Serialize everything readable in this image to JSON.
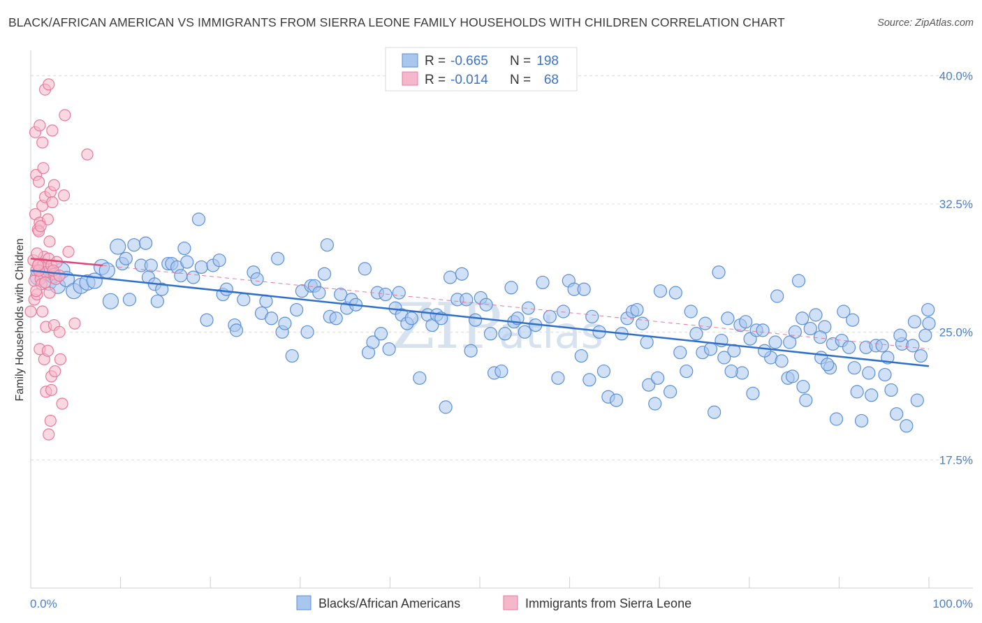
{
  "header": {
    "title": "BLACK/AFRICAN AMERICAN VS IMMIGRANTS FROM SIERRA LEONE FAMILY HOUSEHOLDS WITH CHILDREN CORRELATION CHART",
    "source": "Source: ZipAtlas.com"
  },
  "watermark": {
    "zip": "ZIP",
    "atlas": "atlas"
  },
  "colors": {
    "blue_fill": "#a9c6ee",
    "blue_stroke": "#5b8fd6",
    "blue_line": "#2f6fcc",
    "pink_fill": "#f5b8cb",
    "pink_stroke": "#e8799c",
    "pink_line": "#e0457a",
    "grid": "#dcdcdc",
    "tick_text": "#4a7fc9"
  },
  "stats": {
    "rows": [
      {
        "r_label": "R =",
        "r_value": "-0.665",
        "n_label": "N =",
        "n_value": "198"
      },
      {
        "r_label": "R =",
        "r_value": "-0.014",
        "n_label": "N =",
        "n_value": "68"
      }
    ]
  },
  "legend": {
    "items": [
      "Blacks/African Americans",
      "Immigrants from Sierra Leone"
    ]
  },
  "chart_data": {
    "type": "scatter",
    "title": "BLACK/AFRICAN AMERICAN VS IMMIGRANTS FROM SIERRA LEONE FAMILY HOUSEHOLDS WITH CHILDREN CORRELATION CHART",
    "xlabel": "",
    "ylabel": "Family Households with Children",
    "xlim": [
      0,
      100
    ],
    "ylim": [
      10.0,
      41.5
    ],
    "x_tick_labels": [
      "0.0%",
      "100.0%"
    ],
    "y_ticks": [
      17.5,
      25.0,
      32.5,
      40.0
    ],
    "y_tick_labels": [
      "17.5%",
      "25.0%",
      "32.5%",
      "40.0%"
    ],
    "grid": true,
    "series": [
      {
        "name": "Blacks/African Americans",
        "R": -0.665,
        "N": 198,
        "trend": {
          "x": [
            0,
            100
          ],
          "y": [
            28.6,
            23.0
          ]
        },
        "points": [
          [
            0.8,
            28.2
          ],
          [
            1.2,
            28.7
          ],
          [
            1.6,
            28.4
          ],
          [
            2.0,
            27.9
          ],
          [
            2.5,
            28.3
          ],
          [
            3.0,
            27.7
          ],
          [
            3.5,
            28.6
          ],
          [
            4.0,
            28.1
          ],
          [
            4.8,
            27.4
          ],
          [
            5.6,
            27.7
          ],
          [
            6.3,
            27.9
          ],
          [
            7.1,
            28.0
          ],
          [
            7.9,
            28.8
          ],
          [
            8.5,
            28.6
          ],
          [
            8.9,
            26.8
          ],
          [
            9.7,
            30.0
          ],
          [
            10.2,
            29.0
          ],
          [
            10.6,
            29.3
          ],
          [
            11.0,
            26.9
          ],
          [
            11.5,
            30.1
          ],
          [
            12.3,
            28.9
          ],
          [
            12.8,
            30.2
          ],
          [
            13.1,
            28.2
          ],
          [
            13.4,
            28.9
          ],
          [
            13.8,
            27.8
          ],
          [
            14.1,
            26.8
          ],
          [
            14.6,
            27.5
          ],
          [
            15.3,
            29.0
          ],
          [
            15.7,
            29.0
          ],
          [
            16.3,
            28.8
          ],
          [
            16.7,
            28.3
          ],
          [
            17.1,
            29.9
          ],
          [
            17.4,
            29.1
          ],
          [
            18.1,
            28.2
          ],
          [
            18.7,
            31.6
          ],
          [
            19.0,
            28.8
          ],
          [
            19.6,
            25.7
          ],
          [
            20.3,
            28.9
          ],
          [
            21.0,
            29.2
          ],
          [
            21.4,
            27.2
          ],
          [
            21.8,
            27.5
          ],
          [
            22.7,
            25.4
          ],
          [
            22.9,
            25.1
          ],
          [
            23.7,
            26.9
          ],
          [
            24.8,
            28.5
          ],
          [
            25.2,
            28.1
          ],
          [
            25.7,
            26.1
          ],
          [
            26.2,
            26.8
          ],
          [
            26.8,
            25.8
          ],
          [
            27.5,
            29.3
          ],
          [
            28.0,
            25.0
          ],
          [
            28.3,
            25.5
          ],
          [
            29.1,
            23.6
          ],
          [
            29.6,
            26.3
          ],
          [
            30.2,
            27.4
          ],
          [
            30.8,
            25.0
          ],
          [
            31.2,
            27.7
          ],
          [
            31.6,
            27.7
          ],
          [
            32.1,
            27.3
          ],
          [
            32.7,
            28.4
          ],
          [
            33.0,
            30.1
          ],
          [
            33.3,
            25.9
          ],
          [
            34.0,
            25.8
          ],
          [
            34.5,
            27.2
          ],
          [
            35.2,
            26.4
          ],
          [
            35.7,
            26.9
          ],
          [
            36.2,
            26.6
          ],
          [
            37.2,
            28.7
          ],
          [
            37.6,
            23.8
          ],
          [
            38.1,
            24.4
          ],
          [
            38.6,
            27.3
          ],
          [
            39.0,
            24.9
          ],
          [
            39.5,
            27.2
          ],
          [
            39.9,
            24.0
          ],
          [
            40.6,
            26.4
          ],
          [
            41.0,
            27.3
          ],
          [
            41.3,
            26.0
          ],
          [
            41.9,
            25.5
          ],
          [
            42.4,
            25.8
          ],
          [
            43.3,
            22.3
          ],
          [
            44.2,
            26.0
          ],
          [
            44.7,
            25.4
          ],
          [
            45.2,
            26.0
          ],
          [
            45.7,
            25.8
          ],
          [
            46.2,
            20.6
          ],
          [
            46.7,
            28.2
          ],
          [
            47.5,
            26.9
          ],
          [
            48.0,
            28.4
          ],
          [
            48.5,
            26.9
          ],
          [
            49.0,
            23.9
          ],
          [
            49.5,
            25.7
          ],
          [
            50.1,
            27.0
          ],
          [
            50.7,
            26.6
          ],
          [
            51.2,
            24.9
          ],
          [
            51.6,
            22.6
          ],
          [
            52.4,
            22.7
          ],
          [
            52.8,
            24.9
          ],
          [
            53.5,
            27.6
          ],
          [
            53.8,
            25.6
          ],
          [
            54.2,
            25.8
          ],
          [
            55.0,
            25.0
          ],
          [
            55.4,
            26.4
          ],
          [
            56.2,
            25.4
          ],
          [
            57.0,
            27.9
          ],
          [
            57.8,
            25.9
          ],
          [
            58.7,
            22.3
          ],
          [
            59.3,
            26.2
          ],
          [
            59.9,
            28.0
          ],
          [
            60.5,
            27.5
          ],
          [
            61.3,
            23.6
          ],
          [
            61.6,
            27.5
          ],
          [
            62.2,
            22.2
          ],
          [
            62.5,
            25.9
          ],
          [
            63.3,
            25.0
          ],
          [
            63.8,
            22.7
          ],
          [
            64.3,
            21.2
          ],
          [
            65.2,
            21.0
          ],
          [
            65.8,
            24.9
          ],
          [
            66.4,
            25.8
          ],
          [
            67.0,
            26.2
          ],
          [
            67.5,
            26.3
          ],
          [
            68.1,
            25.5
          ],
          [
            68.6,
            24.4
          ],
          [
            68.8,
            21.9
          ],
          [
            69.5,
            20.8
          ],
          [
            69.8,
            22.3
          ],
          [
            70.1,
            27.4
          ],
          [
            71.2,
            21.5
          ],
          [
            71.8,
            27.3
          ],
          [
            72.3,
            23.8
          ],
          [
            73.0,
            22.7
          ],
          [
            73.5,
            26.2
          ],
          [
            74.1,
            24.9
          ],
          [
            74.8,
            23.8
          ],
          [
            75.1,
            25.5
          ],
          [
            75.7,
            24.0
          ],
          [
            76.1,
            20.3
          ],
          [
            76.6,
            28.5
          ],
          [
            77.2,
            23.5
          ],
          [
            77.6,
            25.8
          ],
          [
            78.3,
            23.9
          ],
          [
            79.0,
            25.4
          ],
          [
            79.6,
            25.6
          ],
          [
            80.1,
            24.6
          ],
          [
            80.8,
            25.1
          ],
          [
            81.5,
            25.1
          ],
          [
            82.4,
            23.5
          ],
          [
            83.1,
            27.1
          ],
          [
            83.6,
            23.3
          ],
          [
            84.3,
            22.3
          ],
          [
            84.8,
            22.4
          ],
          [
            85.1,
            25.0
          ],
          [
            85.5,
            28.0
          ],
          [
            85.9,
            25.8
          ],
          [
            86.3,
            21.0
          ],
          [
            86.8,
            25.2
          ],
          [
            87.4,
            26.0
          ],
          [
            88.0,
            23.5
          ],
          [
            88.4,
            25.3
          ],
          [
            89.0,
            22.9
          ],
          [
            89.3,
            24.3
          ],
          [
            89.7,
            19.9
          ],
          [
            90.3,
            24.5
          ],
          [
            91.1,
            24.1
          ],
          [
            91.5,
            25.7
          ],
          [
            92.0,
            21.5
          ],
          [
            92.5,
            19.8
          ],
          [
            93.0,
            24.1
          ],
          [
            93.6,
            21.3
          ],
          [
            94.1,
            24.2
          ],
          [
            94.8,
            24.2
          ],
          [
            95.4,
            23.5
          ],
          [
            95.8,
            21.6
          ],
          [
            96.4,
            20.2
          ],
          [
            97.0,
            24.3
          ],
          [
            97.5,
            19.5
          ],
          [
            98.2,
            24.2
          ],
          [
            98.7,
            21.0
          ],
          [
            99.1,
            23.6
          ],
          [
            99.6,
            24.8
          ],
          [
            100.0,
            25.5
          ],
          [
            99.9,
            26.3
          ],
          [
            98.4,
            25.6
          ],
          [
            96.8,
            24.8
          ],
          [
            95.1,
            22.5
          ],
          [
            93.3,
            22.6
          ],
          [
            91.7,
            22.9
          ],
          [
            90.5,
            26.2
          ],
          [
            88.7,
            23.1
          ],
          [
            87.9,
            24.7
          ],
          [
            86.0,
            21.8
          ],
          [
            84.5,
            24.4
          ],
          [
            82.9,
            24.4
          ],
          [
            81.7,
            23.9
          ],
          [
            80.4,
            21.4
          ],
          [
            79.2,
            22.6
          ],
          [
            78.0,
            22.7
          ],
          [
            76.9,
            24.5
          ]
        ]
      },
      {
        "name": "Immigrants from Sierra Leone",
        "R": -0.014,
        "N": 68,
        "trend": {
          "x": [
            0,
            8
          ],
          "y": [
            29.3,
            28.9
          ]
        },
        "points": [
          [
            0.3,
            29.2
          ],
          [
            0.6,
            28.6
          ],
          [
            0.9,
            29.0
          ],
          [
            1.2,
            28.3
          ],
          [
            1.5,
            29.4
          ],
          [
            1.8,
            28.8
          ],
          [
            0.4,
            28.0
          ],
          [
            0.7,
            29.6
          ],
          [
            1.1,
            28.1
          ],
          [
            1.4,
            29.0
          ],
          [
            1.7,
            28.5
          ],
          [
            2.0,
            29.3
          ],
          [
            2.3,
            28.9
          ],
          [
            2.6,
            28.4
          ],
          [
            2.9,
            29.1
          ],
          [
            0.5,
            31.9
          ],
          [
            0.8,
            31.0
          ],
          [
            1.0,
            31.4
          ],
          [
            1.3,
            32.4
          ],
          [
            1.6,
            32.9
          ],
          [
            1.9,
            31.6
          ],
          [
            0.6,
            34.2
          ],
          [
            0.9,
            33.8
          ],
          [
            1.4,
            34.6
          ],
          [
            2.2,
            33.2
          ],
          [
            2.6,
            33.6
          ],
          [
            0.5,
            36.7
          ],
          [
            1.0,
            37.1
          ],
          [
            1.3,
            36.1
          ],
          [
            2.4,
            36.8
          ],
          [
            1.6,
            39.2
          ],
          [
            2.0,
            39.5
          ],
          [
            3.8,
            37.7
          ],
          [
            6.3,
            35.4
          ],
          [
            3.7,
            33.0
          ],
          [
            4.2,
            29.7
          ],
          [
            0.4,
            26.9
          ],
          [
            0.7,
            27.2
          ],
          [
            1.3,
            26.2
          ],
          [
            1.7,
            25.3
          ],
          [
            2.1,
            27.3
          ],
          [
            2.6,
            25.4
          ],
          [
            3.2,
            25.0
          ],
          [
            4.9,
            25.5
          ],
          [
            1.0,
            24.0
          ],
          [
            1.5,
            23.4
          ],
          [
            1.9,
            23.9
          ],
          [
            2.3,
            22.4
          ],
          [
            2.7,
            22.7
          ],
          [
            3.3,
            23.4
          ],
          [
            1.7,
            21.5
          ],
          [
            2.3,
            21.6
          ],
          [
            3.5,
            20.8
          ],
          [
            2.2,
            19.8
          ],
          [
            2.0,
            19.0
          ],
          [
            0.9,
            28.6
          ],
          [
            1.2,
            27.8
          ],
          [
            2.8,
            28.1
          ],
          [
            0.8,
            28.9
          ],
          [
            2.5,
            28.6
          ],
          [
            3.2,
            28.3
          ],
          [
            0.9,
            30.9
          ],
          [
            1.1,
            31.2
          ],
          [
            2.4,
            32.6
          ],
          [
            0.6,
            27.4
          ],
          [
            0.0,
            26.2
          ],
          [
            1.6,
            27.9
          ],
          [
            2.1,
            30.3
          ]
        ]
      }
    ]
  }
}
